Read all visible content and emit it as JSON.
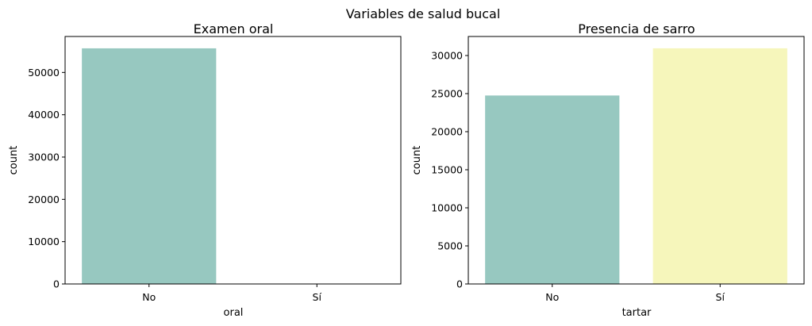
{
  "figure": {
    "suptitle": "Variables de salud bucal"
  },
  "chart_data": [
    {
      "type": "bar",
      "title": "Examen oral",
      "xlabel": "oral",
      "ylabel": "count",
      "categories": [
        "No",
        "Sí"
      ],
      "values": [
        55700,
        null
      ],
      "colors": [
        "#97c8c0",
        null
      ],
      "ylim": [
        0,
        58500
      ],
      "yticks": [
        0,
        10000,
        20000,
        30000,
        40000,
        50000
      ],
      "ytick_labels": [
        "0",
        "10000",
        "20000",
        "30000",
        "40000",
        "50000"
      ],
      "grid": false
    },
    {
      "type": "bar",
      "title": "Presencia de sarro",
      "xlabel": "tartar",
      "ylabel": "count",
      "categories": [
        "No",
        "Sí"
      ],
      "values": [
        24750,
        30950
      ],
      "colors": [
        "#97c8c0",
        "#f6f6bb"
      ],
      "ylim": [
        0,
        32500
      ],
      "yticks": [
        0,
        5000,
        10000,
        15000,
        20000,
        25000,
        30000
      ],
      "ytick_labels": [
        "0",
        "5000",
        "10000",
        "15000",
        "20000",
        "25000",
        "30000"
      ],
      "grid": false
    }
  ]
}
